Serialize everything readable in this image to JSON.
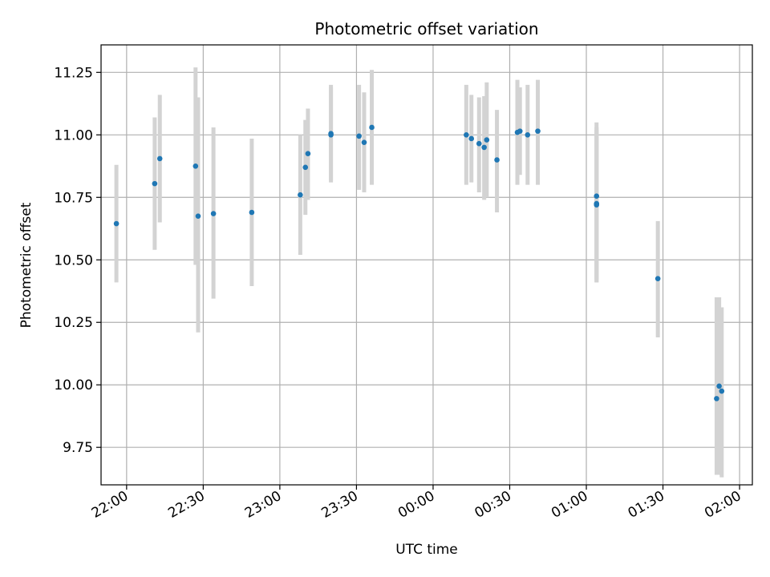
{
  "chart_data": {
    "type": "scatter",
    "title": "Photometric offset variation",
    "xlabel": "UTC time",
    "ylabel": "Photometric offset",
    "x_axis": "time",
    "xlim": [
      "21:50",
      "02:05"
    ],
    "ylim": [
      9.6,
      11.36
    ],
    "grid": true,
    "x_ticks": [
      "22:00",
      "22:30",
      "23:00",
      "23:30",
      "00:00",
      "00:30",
      "01:00",
      "01:30",
      "02:00"
    ],
    "y_ticks": [
      "9.75",
      "10.00",
      "10.25",
      "10.50",
      "10.75",
      "11.00",
      "11.25"
    ],
    "colors": {
      "point": "#1f77b4",
      "errorbar": "#d3d3d3",
      "grid": "#b0b0b0"
    },
    "series": [
      {
        "points": [
          {
            "t": "21:56",
            "y": 10.645,
            "lo": 10.41,
            "hi": 10.88
          },
          {
            "t": "22:11",
            "y": 10.805,
            "lo": 10.54,
            "hi": 11.07
          },
          {
            "t": "22:13",
            "y": 10.905,
            "lo": 10.65,
            "hi": 11.16
          },
          {
            "t": "22:27",
            "y": 10.875,
            "lo": 10.48,
            "hi": 11.27
          },
          {
            "t": "22:28",
            "y": 10.675,
            "lo": 10.21,
            "hi": 11.15
          },
          {
            "t": "22:34",
            "y": 10.685,
            "lo": 10.345,
            "hi": 11.03
          },
          {
            "t": "22:49",
            "y": 10.69,
            "lo": 10.395,
            "hi": 10.985
          },
          {
            "t": "23:08",
            "y": 10.76,
            "lo": 10.52,
            "hi": 11.0
          },
          {
            "t": "23:10",
            "y": 10.87,
            "lo": 10.68,
            "hi": 11.06
          },
          {
            "t": "23:11",
            "y": 10.925,
            "lo": 10.74,
            "hi": 11.105
          },
          {
            "t": "23:20",
            "y": 11.0,
            "lo": 10.81,
            "hi": 11.2
          },
          {
            "t": "23:20",
            "y": 11.005,
            "lo": 10.82,
            "hi": 11.19
          },
          {
            "t": "23:31",
            "y": 10.995,
            "lo": 10.78,
            "hi": 11.2
          },
          {
            "t": "23:33",
            "y": 10.97,
            "lo": 10.77,
            "hi": 11.17
          },
          {
            "t": "23:36",
            "y": 11.03,
            "lo": 10.8,
            "hi": 11.26
          },
          {
            "t": "00:13",
            "y": 11.0,
            "lo": 10.8,
            "hi": 11.2
          },
          {
            "t": "00:15",
            "y": 10.985,
            "lo": 10.81,
            "hi": 11.16
          },
          {
            "t": "00:18",
            "y": 10.965,
            "lo": 10.77,
            "hi": 11.15
          },
          {
            "t": "00:20",
            "y": 10.95,
            "lo": 10.74,
            "hi": 11.155
          },
          {
            "t": "00:21",
            "y": 10.98,
            "lo": 10.75,
            "hi": 11.21
          },
          {
            "t": "00:25",
            "y": 10.9,
            "lo": 10.69,
            "hi": 11.1
          },
          {
            "t": "00:33",
            "y": 11.01,
            "lo": 10.8,
            "hi": 11.22
          },
          {
            "t": "00:34",
            "y": 11.015,
            "lo": 10.84,
            "hi": 11.19
          },
          {
            "t": "00:37",
            "y": 11.0,
            "lo": 10.8,
            "hi": 11.2
          },
          {
            "t": "00:41",
            "y": 11.015,
            "lo": 10.8,
            "hi": 11.22
          },
          {
            "t": "01:04",
            "y": 10.755,
            "lo": 10.41,
            "hi": 11.05
          },
          {
            "t": "01:04",
            "y": 10.725,
            "lo": 10.42,
            "hi": 11.03
          },
          {
            "t": "01:04",
            "y": 10.72,
            "lo": 10.41,
            "hi": 11.02
          },
          {
            "t": "01:28",
            "y": 10.425,
            "lo": 10.19,
            "hi": 10.655
          },
          {
            "t": "01:51",
            "y": 9.945,
            "lo": 9.64,
            "hi": 10.35
          },
          {
            "t": "01:52",
            "y": 9.995,
            "lo": 9.64,
            "hi": 10.35
          },
          {
            "t": "01:53",
            "y": 9.975,
            "lo": 9.63,
            "hi": 10.31
          }
        ]
      }
    ]
  }
}
